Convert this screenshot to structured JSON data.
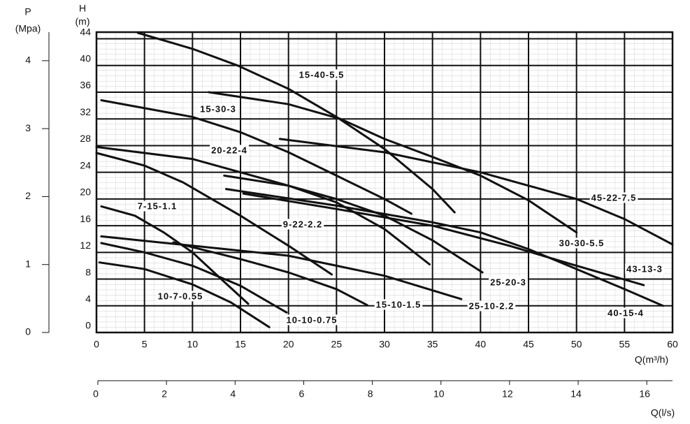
{
  "chart_data": {
    "type": "line",
    "ylabel": "H",
    "yunit": "(m)",
    "y2label": "P",
    "y2unit": "(Mpa)",
    "xlabel": "Q(m³/h)",
    "x2label": "Q(l/s)",
    "color": "#111111",
    "grid": true,
    "xlim": [
      0,
      60
    ],
    "xticks": [
      0,
      5,
      10,
      15,
      20,
      25,
      30,
      35,
      40,
      45,
      50,
      55,
      60
    ],
    "ylim": [
      0,
      45
    ],
    "yticks": [
      0,
      4,
      8,
      12,
      16,
      20,
      24,
      28,
      32,
      36,
      40,
      44
    ],
    "y2lim": [
      0,
      4.42
    ],
    "y2ticks": [
      0,
      1,
      2,
      3,
      4
    ],
    "x2lim": [
      0,
      16.75
    ],
    "x2ticks": [
      0,
      2,
      4,
      6,
      8,
      10,
      12,
      14,
      16
    ],
    "series": [
      {
        "name": "15-40-5.5",
        "x": [
          4.3,
          10,
          14.7,
          20,
          25,
          30,
          35,
          37.3
        ],
        "values": [
          44.9,
          42.5,
          40,
          36.5,
          32.3,
          27.5,
          21.5,
          18
        ]
      },
      {
        "name": "15-30-3",
        "x": [
          0.5,
          10,
          15,
          20,
          25,
          30,
          32.8
        ],
        "values": [
          34.8,
          32.3,
          30,
          27,
          23.5,
          20,
          17.8
        ]
      },
      {
        "name": "20-22-4",
        "x": [
          0,
          10,
          15,
          20,
          25,
          30,
          34.7
        ],
        "values": [
          27.8,
          26,
          24,
          22,
          19.5,
          15.5,
          10.2
        ]
      },
      {
        "name": "7-15-1.1",
        "x": [
          0.5,
          4,
          7,
          10,
          13,
          15.8
        ],
        "values": [
          18.9,
          17.5,
          15,
          12,
          8,
          4.3
        ]
      },
      {
        "name": "9-22-2.2",
        "x": [
          0,
          5,
          9,
          15,
          20,
          24.5
        ],
        "values": [
          26.9,
          25,
          22.5,
          17.5,
          13,
          8.7
        ]
      },
      {
        "name": "30-30-5.5",
        "x": [
          11.7,
          20,
          25.4,
          30,
          35,
          40,
          45,
          50
        ],
        "values": [
          36,
          34.2,
          32,
          29,
          26.3,
          23.5,
          19.8,
          15
        ]
      },
      {
        "name": "45-22-7.5",
        "x": [
          19.1,
          30,
          40,
          45,
          50,
          55,
          60
        ],
        "values": [
          29,
          27,
          24,
          22,
          20,
          17,
          13.2
        ]
      },
      {
        "name": "43-13-3",
        "x": [
          15.3,
          25,
          35,
          43,
          50,
          57
        ],
        "values": [
          20.8,
          18.5,
          16,
          13,
          10,
          7.1
        ]
      },
      {
        "name": "25-20-3",
        "x": [
          13.3,
          20,
          25,
          30,
          35,
          40.2
        ],
        "values": [
          23.5,
          22,
          20,
          17.5,
          13.8,
          9
        ]
      },
      {
        "name": "15-10-1.5",
        "x": [
          8,
          15,
          20,
          25,
          28.2
        ],
        "values": [
          13.5,
          11,
          9,
          6.5,
          4.1
        ]
      },
      {
        "name": "25-10-2.2",
        "x": [
          0.5,
          10,
          20,
          25,
          30,
          38
        ],
        "values": [
          14.4,
          13,
          11.5,
          10,
          8.5,
          5
        ]
      },
      {
        "name": "40-15-4",
        "x": [
          13.5,
          25,
          35,
          40,
          45,
          50,
          55,
          59
        ],
        "values": [
          21.5,
          19,
          16.5,
          15,
          12.5,
          9.5,
          6.5,
          4
        ]
      },
      {
        "name": "10-7-0.55",
        "x": [
          0.3,
          5,
          10,
          14,
          18
        ],
        "values": [
          10.5,
          9.5,
          7.2,
          4.5,
          0.8
        ]
      },
      {
        "name": "10-10-0.75",
        "x": [
          0.5,
          5,
          10,
          15,
          19.8
        ],
        "values": [
          13.4,
          12,
          10,
          7,
          3
        ]
      }
    ]
  }
}
